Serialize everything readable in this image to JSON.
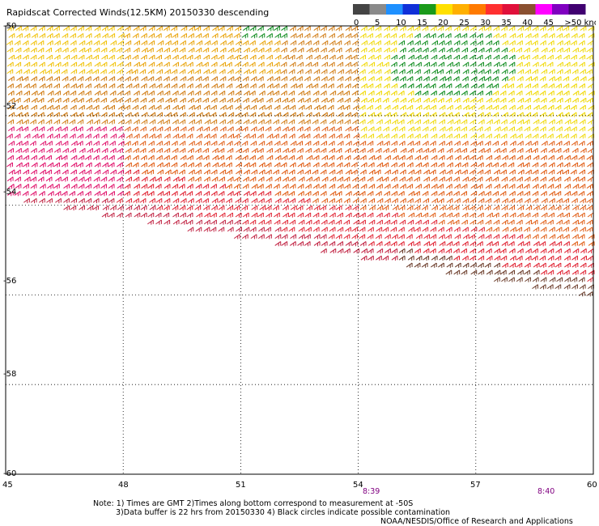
{
  "title": "Rapidscat Corrected Winds(12.5KM) 20150330 descending",
  "colorbar": {
    "colors": [
      "#444444",
      "#8a8a8a",
      "#1e90ff",
      "#1030d8",
      "#1a9a1a",
      "#ffe000",
      "#ffb000",
      "#ff7a00",
      "#ff3030",
      "#e0103a",
      "#8a5030",
      "#ff00ff",
      "#8000c0",
      "#400070"
    ],
    "labels": [
      "0",
      "5",
      "10",
      "15",
      "20",
      "25",
      "30",
      "35",
      "40",
      "45",
      ">50 knots"
    ]
  },
  "axes": {
    "y_labels": [
      "-50",
      "-52",
      "-54",
      "-56",
      "-58",
      "-60"
    ],
    "x_labels": [
      "45",
      "48",
      "51",
      "54",
      "57",
      "60"
    ],
    "lon_range": [
      45,
      60
    ],
    "lat_range": [
      -60,
      -50
    ],
    "grid": true,
    "grid_style": "dotted"
  },
  "time_labels": [
    "8:39",
    "8:40"
  ],
  "notes": {
    "line1": "Note: 1) Times are GMT 2)Times along bottom correspond to measurement at -50S",
    "line2": "3)Data buffer is 22 hrs from 20150330 4) Black circles indicate possible contamination"
  },
  "credit": "NOAA/NESDIS/Office of Research and Applications"
}
